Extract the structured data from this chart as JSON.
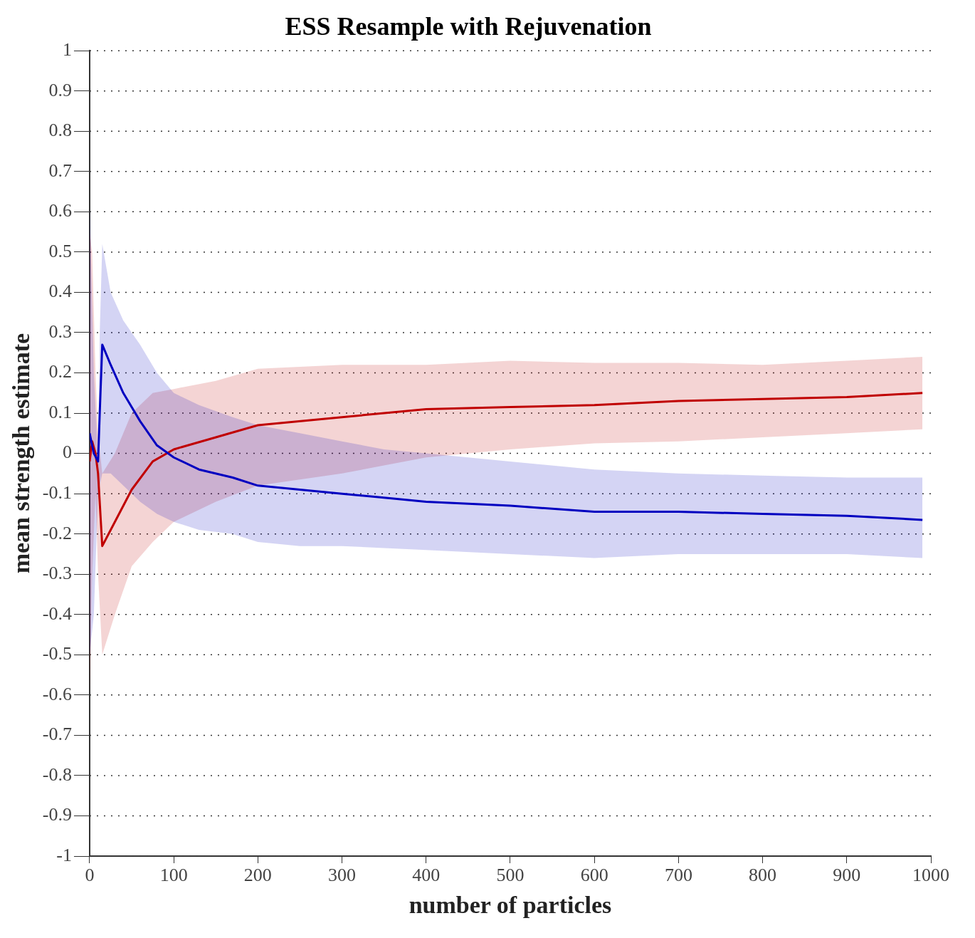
{
  "chart_data": {
    "type": "line",
    "title": "ESS Resample with Rejuvenation",
    "xlabel": "number of particles",
    "ylabel": "mean strength estimate",
    "xlim": [
      0,
      1000
    ],
    "xticks": [
      0,
      100,
      200,
      300,
      400,
      500,
      600,
      700,
      800,
      900,
      1000
    ],
    "ylim": [
      -1,
      1
    ],
    "yticks": [
      -1,
      -0.9,
      -0.8,
      -0.7,
      -0.6,
      -0.5,
      -0.4,
      -0.3,
      -0.2,
      -0.1,
      0,
      0.1,
      0.2,
      0.3,
      0.4,
      0.5,
      0.6,
      0.7,
      0.8,
      0.9,
      1
    ],
    "grid": "y",
    "legend": false,
    "line_style": "solid",
    "marker": "none",
    "series": [
      {
        "color": "#0000c0",
        "x": [
          0,
          5,
          10,
          12,
          15,
          25,
          40,
          60,
          80,
          100,
          130,
          170,
          200,
          250,
          300,
          350,
          400,
          500,
          600,
          700,
          800,
          900,
          990
        ],
        "values": [
          0.05,
          0.0,
          -0.02,
          0.1,
          0.27,
          0.22,
          0.15,
          0.08,
          0.02,
          -0.01,
          -0.04,
          -0.06,
          -0.08,
          -0.09,
          -0.1,
          -0.11,
          -0.12,
          -0.13,
          -0.145,
          -0.145,
          -0.15,
          -0.155,
          -0.165
        ],
        "upper": [
          0.62,
          0.2,
          -0.02,
          0.3,
          0.52,
          0.4,
          0.33,
          0.27,
          0.2,
          0.15,
          0.12,
          0.09,
          0.07,
          0.05,
          0.03,
          0.01,
          0.0,
          -0.02,
          -0.04,
          -0.05,
          -0.055,
          -0.06,
          -0.06
        ],
        "lower": [
          -0.5,
          -0.4,
          -0.1,
          -0.08,
          -0.05,
          -0.05,
          -0.08,
          -0.12,
          -0.15,
          -0.17,
          -0.19,
          -0.2,
          -0.22,
          -0.23,
          -0.23,
          -0.235,
          -0.24,
          -0.25,
          -0.26,
          -0.25,
          -0.25,
          -0.25,
          -0.26
        ]
      },
      {
        "color": "#c00000",
        "x": [
          0,
          3,
          7,
          10,
          15,
          30,
          50,
          75,
          100,
          150,
          200,
          300,
          400,
          500,
          600,
          700,
          800,
          900,
          990
        ],
        "values": [
          -0.02,
          0.03,
          0.0,
          -0.05,
          -0.23,
          -0.17,
          -0.09,
          -0.02,
          0.01,
          0.04,
          0.07,
          0.09,
          0.11,
          0.115,
          0.12,
          0.13,
          0.135,
          0.14,
          0.15
        ],
        "upper": [
          0.55,
          0.5,
          0.2,
          0.05,
          -0.05,
          0.0,
          0.1,
          0.15,
          0.16,
          0.18,
          0.21,
          0.22,
          0.22,
          0.23,
          0.225,
          0.225,
          0.22,
          0.23,
          0.24
        ],
        "lower": [
          -0.6,
          -0.3,
          -0.1,
          -0.3,
          -0.5,
          -0.4,
          -0.28,
          -0.22,
          -0.17,
          -0.12,
          -0.08,
          -0.05,
          -0.01,
          0.01,
          0.025,
          0.03,
          0.04,
          0.05,
          0.06
        ]
      }
    ]
  }
}
